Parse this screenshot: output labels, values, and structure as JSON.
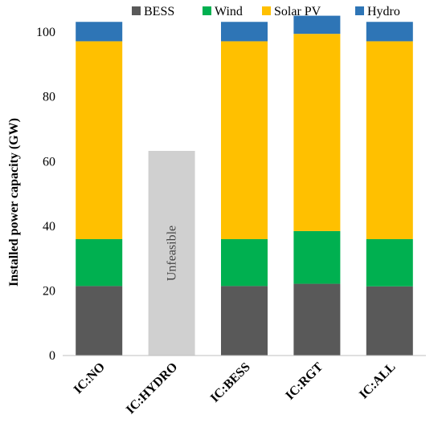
{
  "chart_data": {
    "type": "bar",
    "stacked": true,
    "ylabel": "Installed power capacity (GW)",
    "xlabel": "",
    "ylim": [
      0,
      105
    ],
    "yticks": [
      0,
      20,
      40,
      60,
      80,
      100
    ],
    "grid": false,
    "legend_position": "top",
    "categories": [
      "IC:NO",
      "IC:HYDRO",
      "IC:BESS",
      "IC:RGT",
      "IC:ALL"
    ],
    "series": [
      {
        "name": "BESS",
        "color": "#595959",
        "values": [
          21.5,
          null,
          21.5,
          22.2,
          21.4
        ]
      },
      {
        "name": "Wind",
        "color": "#00b050",
        "values": [
          14.5,
          null,
          14.5,
          16.3,
          14.6
        ]
      },
      {
        "name": "Solar PV",
        "color": "#ffc000",
        "values": [
          61.2,
          null,
          61.2,
          61.0,
          61.2
        ]
      },
      {
        "name": "Hydro",
        "color": "#2e75b6",
        "values": [
          6.0,
          null,
          6.0,
          5.6,
          6.0
        ]
      }
    ],
    "placeholder": {
      "category": "IC:HYDRO",
      "value": 63.3,
      "color": "#d0d0d0",
      "label": "Unfeasible"
    }
  }
}
